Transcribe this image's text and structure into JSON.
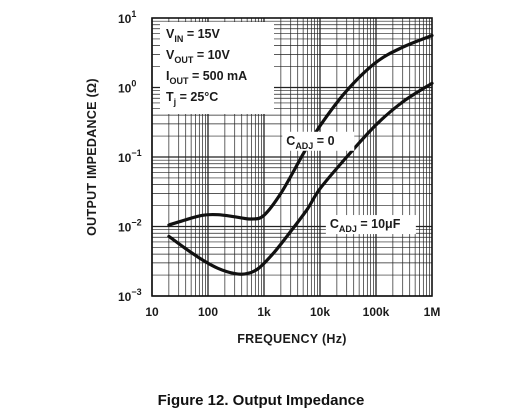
{
  "caption": "Figure 12. Output Impedance",
  "chart_data": {
    "type": "line",
    "xlabel": "FREQUENCY (Hz)",
    "ylabel": "OUTPUT IMPEDANCE (Ω)",
    "xscale": "log",
    "yscale": "log",
    "xlim": [
      10,
      1000000
    ],
    "ylim": [
      0.001,
      10
    ],
    "grid": true,
    "x_ticks": [
      {
        "value": 10,
        "label": "10"
      },
      {
        "value": 100,
        "label": "100"
      },
      {
        "value": 1000,
        "label": "1k"
      },
      {
        "value": 10000,
        "label": "10k"
      },
      {
        "value": 100000,
        "label": "100k"
      },
      {
        "value": 1000000,
        "label": "1M"
      }
    ],
    "y_ticks": [
      {
        "value": 0.001,
        "base": "10",
        "exp": "−3"
      },
      {
        "value": 0.01,
        "base": "10",
        "exp": "−2"
      },
      {
        "value": 0.1,
        "base": "10",
        "exp": "−1"
      },
      {
        "value": 1,
        "base": "10",
        "exp": "0"
      },
      {
        "value": 10,
        "base": "10",
        "exp": "1"
      }
    ],
    "conditions": [
      {
        "name": "V",
        "sub": "IN",
        "rest": " = 15V"
      },
      {
        "name": "V",
        "sub": "OUT",
        "rest": " = 10V"
      },
      {
        "name": "I",
        "sub": "OUT",
        "rest": " = 500 mA"
      },
      {
        "name": "T",
        "sub": "j",
        "rest": " = 25°C"
      }
    ],
    "series": [
      {
        "name": "CADJ = 0",
        "label_main": "C",
        "label_sub": "ADJ",
        "label_rest": " = 0",
        "x": [
          20,
          40,
          80,
          150,
          300,
          600,
          1000,
          2000,
          5000,
          10000,
          30000,
          100000,
          300000,
          1000000
        ],
        "y": [
          0.0105,
          0.0125,
          0.0145,
          0.0148,
          0.0138,
          0.0128,
          0.0145,
          0.03,
          0.11,
          0.28,
          0.9,
          2.3,
          3.8,
          5.6
        ]
      },
      {
        "name": "CADJ = 10μF",
        "label_main": "C",
        "label_sub": "ADJ",
        "label_rest": " = 10μF",
        "x": [
          20,
          40,
          80,
          150,
          300,
          500,
          800,
          1500,
          3000,
          6000,
          10000,
          30000,
          100000,
          300000,
          1000000
        ],
        "y": [
          0.0072,
          0.0048,
          0.0033,
          0.0025,
          0.0021,
          0.0021,
          0.0025,
          0.0042,
          0.0085,
          0.018,
          0.035,
          0.1,
          0.29,
          0.62,
          1.15
        ]
      }
    ]
  }
}
